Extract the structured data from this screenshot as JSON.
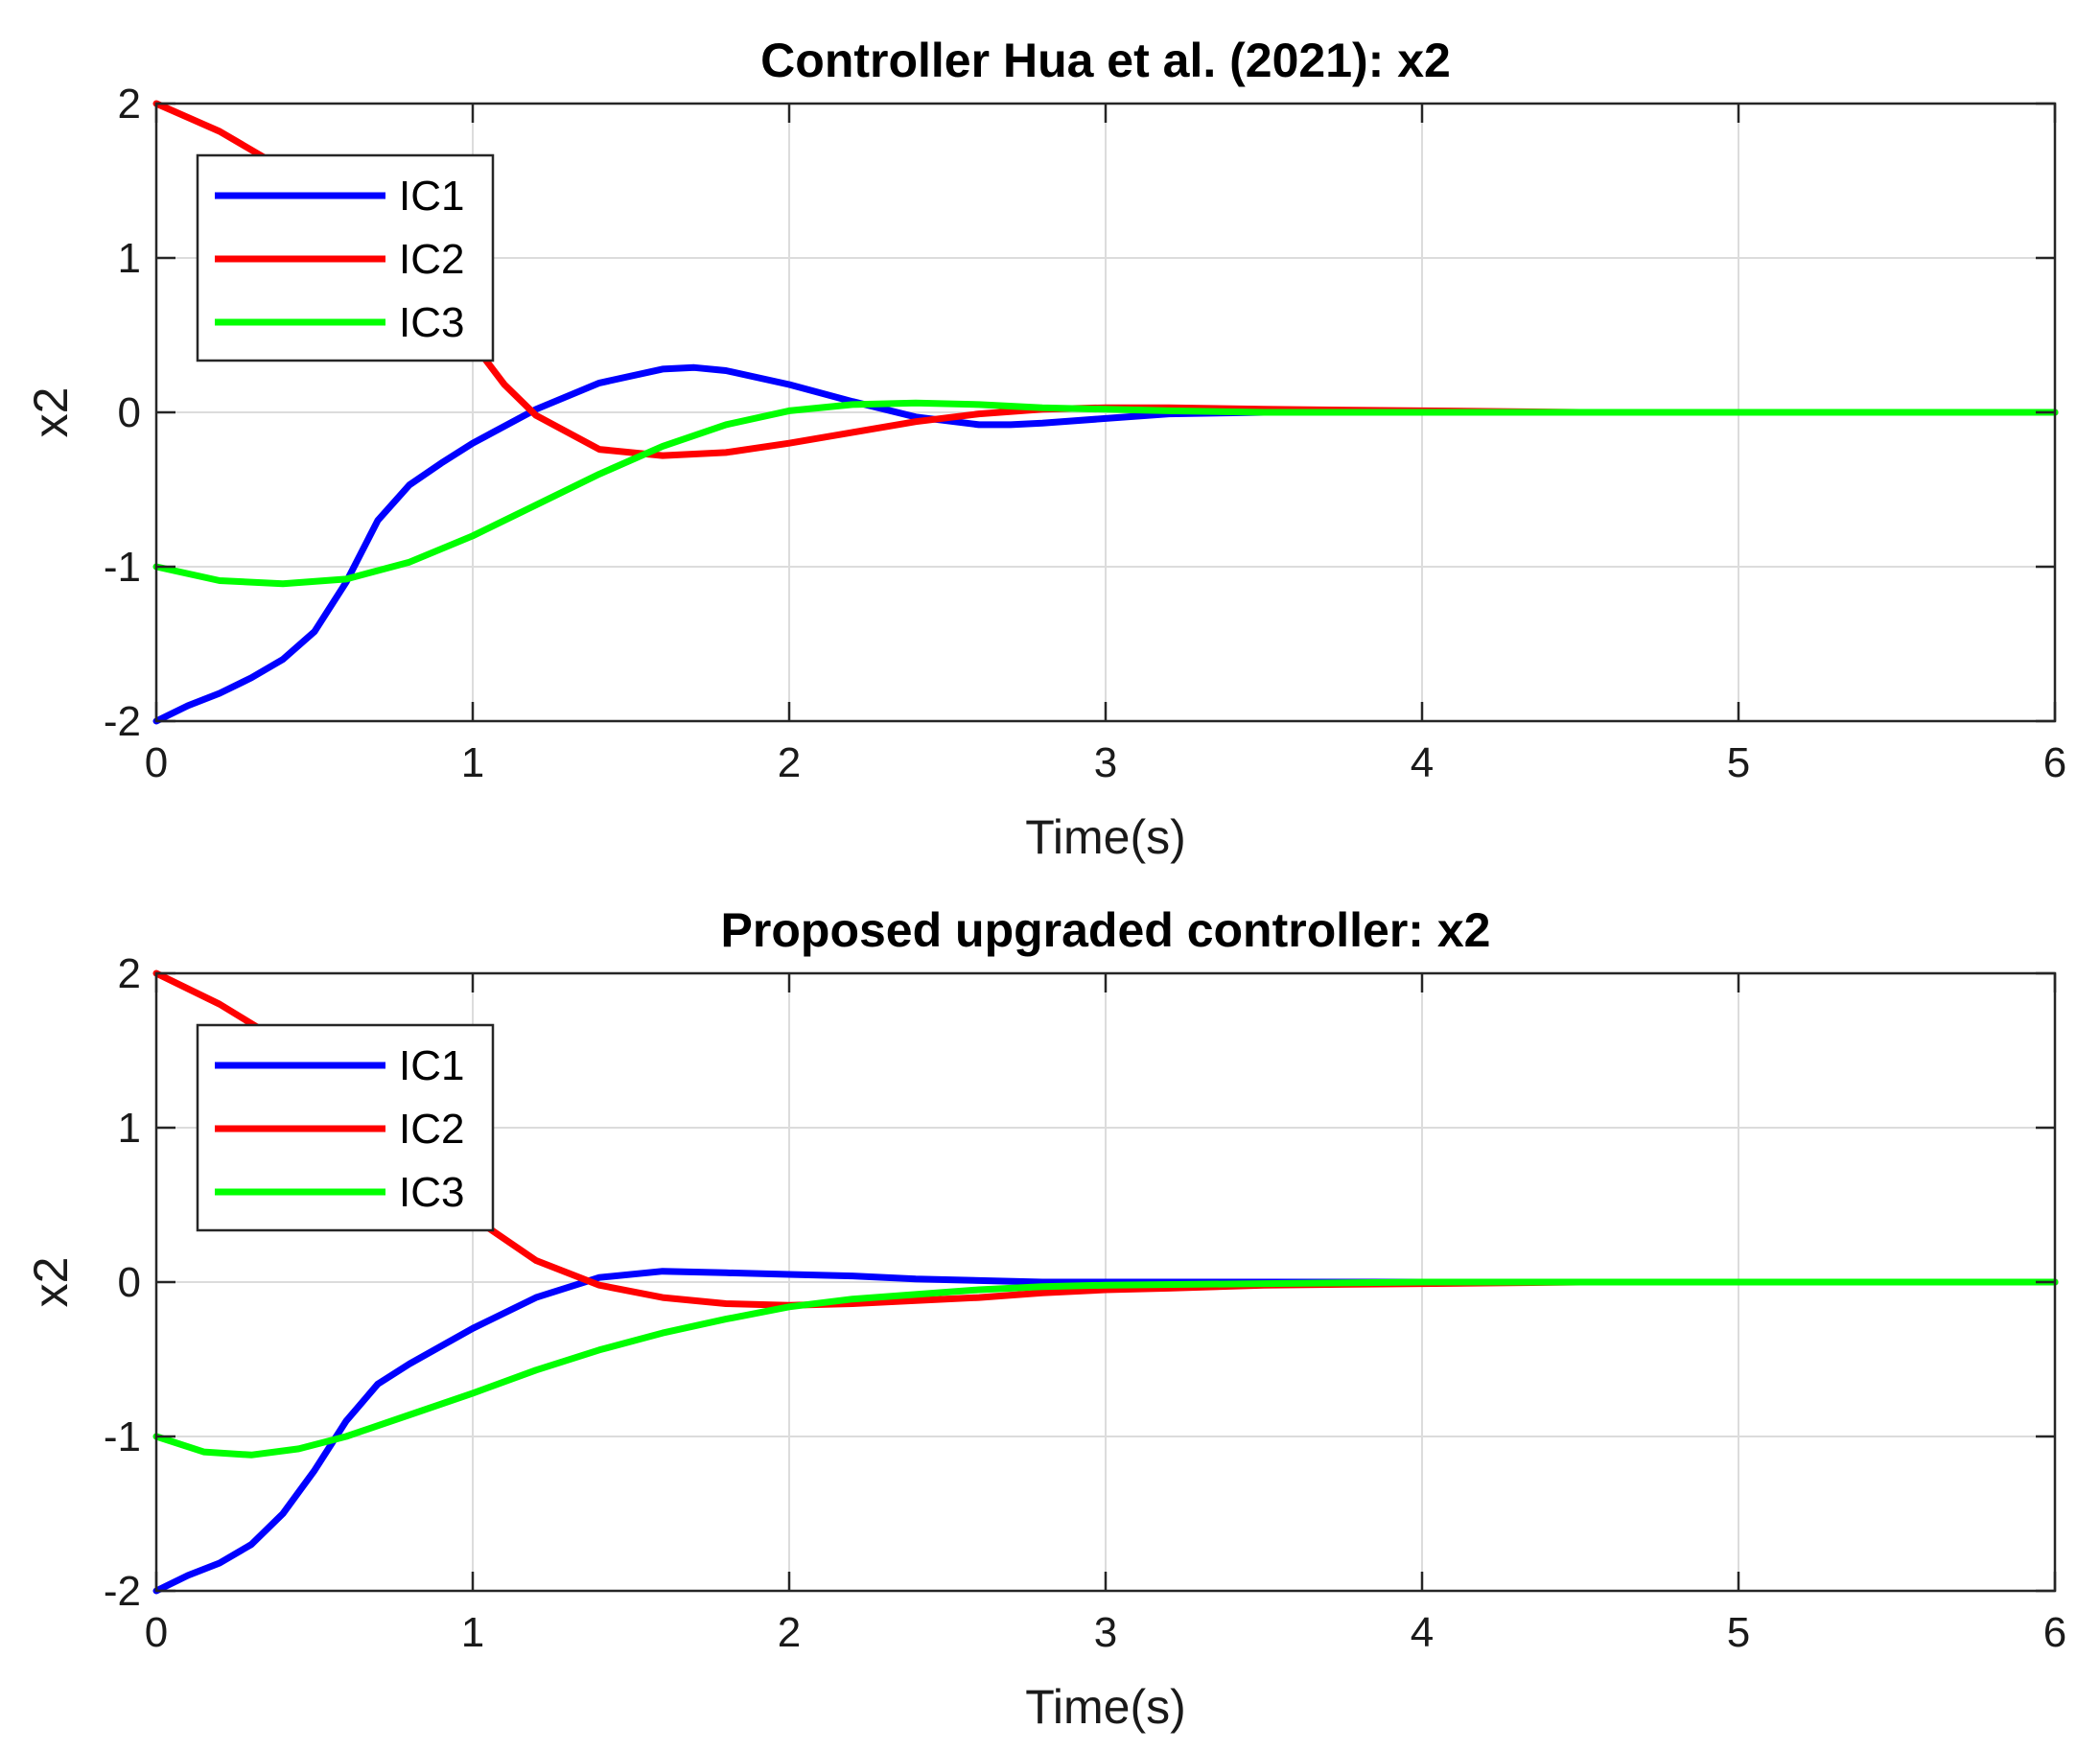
{
  "chart_data": [
    {
      "type": "line",
      "title": "Controller Hua et al. (2021): x2",
      "xlabel": "Time(s)",
      "ylabel": "x2",
      "xlim": [
        0,
        6
      ],
      "ylim": [
        -2,
        2
      ],
      "xticks": [
        "0",
        "1",
        "2",
        "3",
        "4",
        "5",
        "6"
      ],
      "yticks": [
        "-2",
        "-1",
        "0",
        "1",
        "2"
      ],
      "grid": true,
      "legend_position": "top-left",
      "series": [
        {
          "name": "IC1",
          "color": "#0000ff",
          "x": [
            0,
            0.1,
            0.2,
            0.3,
            0.4,
            0.5,
            0.6,
            0.7,
            0.8,
            0.9,
            1.0,
            1.2,
            1.4,
            1.6,
            1.7,
            1.8,
            2.0,
            2.2,
            2.4,
            2.6,
            2.7,
            2.8,
            3.0,
            3.2,
            3.5,
            4.0,
            4.5,
            5.0,
            5.5,
            6.0
          ],
          "y": [
            -2,
            -1.9,
            -1.82,
            -1.72,
            -1.6,
            -1.42,
            -1.1,
            -0.7,
            -0.47,
            -0.33,
            -0.2,
            0.02,
            0.19,
            0.28,
            0.29,
            0.27,
            0.18,
            0.07,
            -0.03,
            -0.08,
            -0.08,
            -0.07,
            -0.04,
            -0.01,
            0.0,
            0.0,
            0.0,
            0.0,
            0.0,
            0.0
          ]
        },
        {
          "name": "IC2",
          "color": "#ff0000",
          "x": [
            0,
            0.2,
            0.4,
            0.6,
            0.8,
            1.0,
            1.1,
            1.2,
            1.4,
            1.6,
            1.8,
            2.0,
            2.2,
            2.4,
            2.6,
            2.8,
            3.0,
            3.2,
            3.5,
            4.0,
            4.5,
            5.0,
            5.5,
            6.0
          ],
          "y": [
            2,
            1.82,
            1.58,
            1.28,
            0.9,
            0.45,
            0.18,
            -0.02,
            -0.24,
            -0.28,
            -0.26,
            -0.2,
            -0.13,
            -0.06,
            -0.01,
            0.02,
            0.03,
            0.03,
            0.02,
            0.01,
            0.0,
            0.0,
            0.0,
            0.0
          ]
        },
        {
          "name": "IC3",
          "color": "#00ff00",
          "x": [
            0,
            0.2,
            0.4,
            0.6,
            0.8,
            1.0,
            1.2,
            1.4,
            1.6,
            1.8,
            2.0,
            2.2,
            2.4,
            2.6,
            2.8,
            3.0,
            3.2,
            3.5,
            4.0,
            4.5,
            5.0,
            5.5,
            6.0
          ],
          "y": [
            -1,
            -1.09,
            -1.11,
            -1.08,
            -0.97,
            -0.8,
            -0.6,
            -0.4,
            -0.22,
            -0.08,
            0.01,
            0.05,
            0.06,
            0.05,
            0.03,
            0.02,
            0.01,
            0.0,
            0.0,
            0.0,
            0.0,
            0.0,
            0.0
          ]
        }
      ]
    },
    {
      "type": "line",
      "title": "Proposed upgraded controller: x2",
      "xlabel": "Time(s)",
      "ylabel": "x2",
      "xlim": [
        0,
        6
      ],
      "ylim": [
        -2,
        2
      ],
      "xticks": [
        "0",
        "1",
        "2",
        "3",
        "4",
        "5",
        "6"
      ],
      "yticks": [
        "-2",
        "-1",
        "0",
        "1",
        "2"
      ],
      "grid": true,
      "legend_position": "top-left",
      "series": [
        {
          "name": "IC1",
          "color": "#0000ff",
          "x": [
            0,
            0.1,
            0.2,
            0.3,
            0.4,
            0.5,
            0.6,
            0.7,
            0.8,
            1.0,
            1.2,
            1.4,
            1.6,
            1.8,
            2.0,
            2.2,
            2.4,
            2.6,
            2.8,
            3.0,
            3.5,
            4.0,
            4.5,
            5.0,
            5.5,
            6.0
          ],
          "y": [
            -2,
            -1.9,
            -1.82,
            -1.7,
            -1.5,
            -1.22,
            -0.9,
            -0.66,
            -0.53,
            -0.3,
            -0.1,
            0.03,
            0.07,
            0.06,
            0.05,
            0.04,
            0.02,
            0.01,
            0.0,
            0.0,
            0.0,
            0.0,
            0.0,
            0.0,
            0.0,
            0.0
          ]
        },
        {
          "name": "IC2",
          "color": "#ff0000",
          "x": [
            0,
            0.2,
            0.4,
            0.6,
            0.8,
            1.0,
            1.2,
            1.4,
            1.6,
            1.8,
            2.0,
            2.2,
            2.4,
            2.6,
            2.8,
            3.0,
            3.2,
            3.5,
            4.0,
            4.5,
            5.0,
            5.5,
            6.0
          ],
          "y": [
            2,
            1.8,
            1.55,
            1.2,
            0.82,
            0.42,
            0.14,
            -0.02,
            -0.1,
            -0.14,
            -0.15,
            -0.14,
            -0.12,
            -0.1,
            -0.07,
            -0.05,
            -0.04,
            -0.02,
            -0.01,
            0.0,
            0.0,
            0.0,
            0.0
          ]
        },
        {
          "name": "IC3",
          "color": "#00ff00",
          "x": [
            0,
            0.15,
            0.3,
            0.45,
            0.6,
            0.8,
            1.0,
            1.2,
            1.4,
            1.6,
            1.8,
            2.0,
            2.2,
            2.4,
            2.6,
            2.8,
            3.0,
            3.5,
            4.0,
            4.5,
            5.0,
            5.5,
            6.0
          ],
          "y": [
            -1,
            -1.1,
            -1.12,
            -1.08,
            -1.0,
            -0.86,
            -0.72,
            -0.57,
            -0.44,
            -0.33,
            -0.24,
            -0.16,
            -0.11,
            -0.08,
            -0.05,
            -0.03,
            -0.02,
            -0.01,
            0.0,
            0.0,
            0.0,
            0.0,
            0.0
          ]
        }
      ]
    }
  ]
}
